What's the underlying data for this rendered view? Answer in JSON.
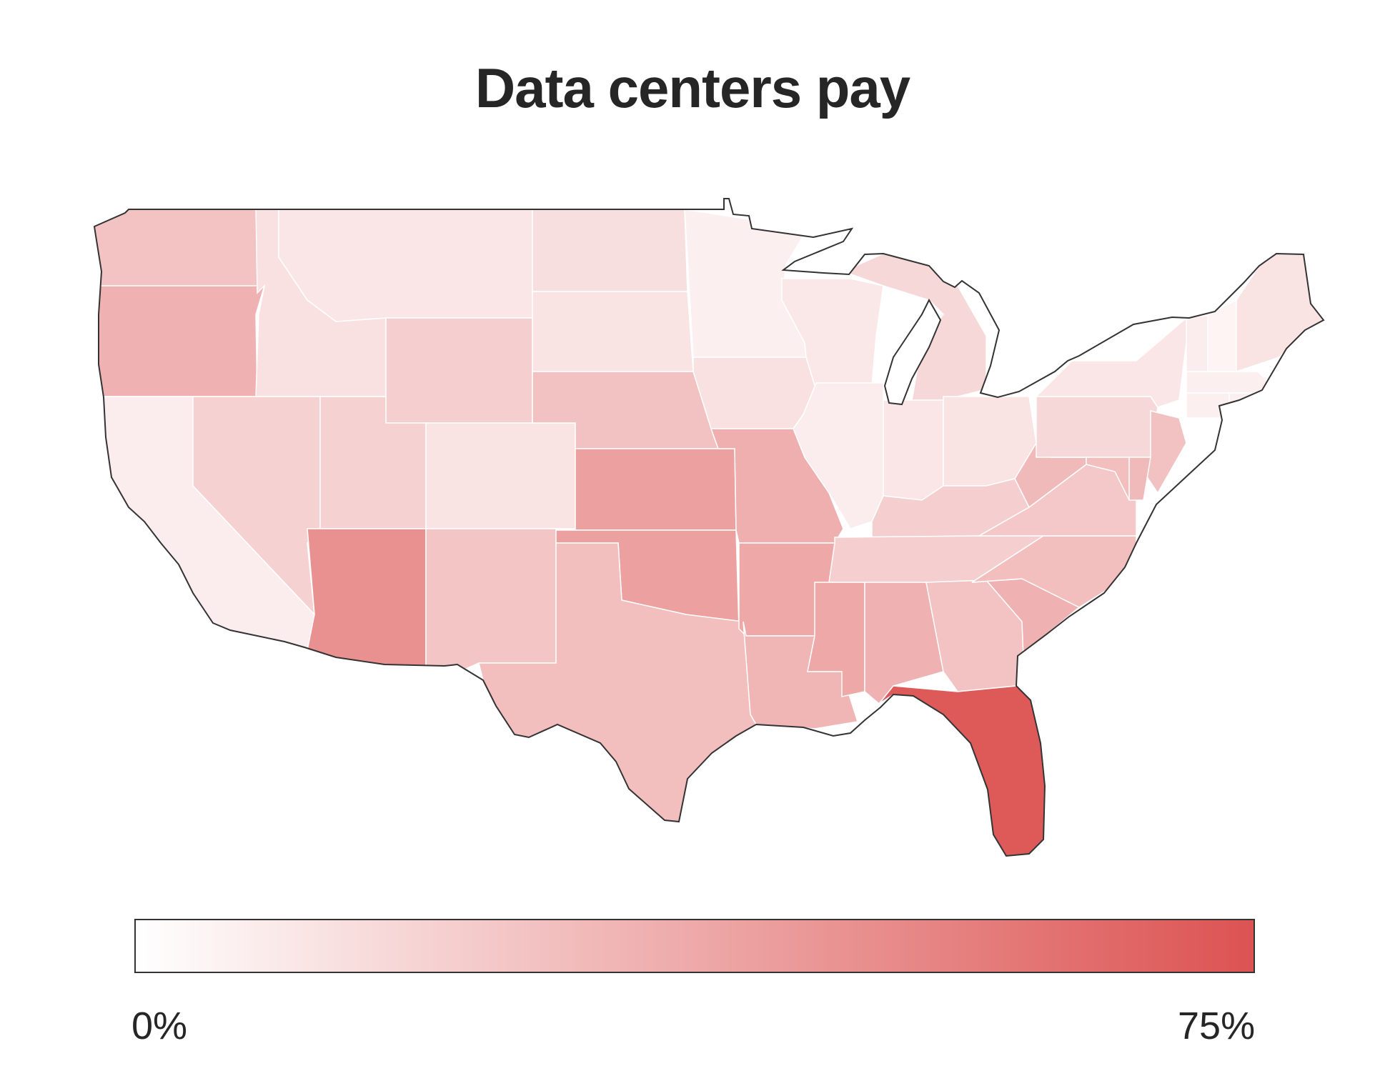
{
  "title": "Data centers pay",
  "colors": {
    "scale_low": "#ffffff",
    "scale_high": "#dc5352",
    "border": "#333333",
    "state_line": "#ffffff"
  },
  "legend": {
    "min_label": "0%",
    "max_label": "75%",
    "min_value": 0,
    "max_value": 75
  },
  "states": [
    {
      "abbr": "WA",
      "value": 26
    },
    {
      "abbr": "OR",
      "value": 34
    },
    {
      "abbr": "CA",
      "value": 8
    },
    {
      "abbr": "ID",
      "value": 13
    },
    {
      "abbr": "NV",
      "value": 20
    },
    {
      "abbr": "MT",
      "value": 11
    },
    {
      "abbr": "WY",
      "value": 21
    },
    {
      "abbr": "UT",
      "value": 20
    },
    {
      "abbr": "AZ",
      "value": 48
    },
    {
      "abbr": "CO",
      "value": 12
    },
    {
      "abbr": "NM",
      "value": 25
    },
    {
      "abbr": "ND",
      "value": 14
    },
    {
      "abbr": "SD",
      "value": 12
    },
    {
      "abbr": "NE",
      "value": 27
    },
    {
      "abbr": "KS",
      "value": 41
    },
    {
      "abbr": "OK",
      "value": 41
    },
    {
      "abbr": "TX",
      "value": 28
    },
    {
      "abbr": "MN",
      "value": 7
    },
    {
      "abbr": "IA",
      "value": 13
    },
    {
      "abbr": "MO",
      "value": 35
    },
    {
      "abbr": "AR",
      "value": 38
    },
    {
      "abbr": "LA",
      "value": 32
    },
    {
      "abbr": "WI",
      "value": 10
    },
    {
      "abbr": "IL",
      "value": 8
    },
    {
      "abbr": "MI",
      "value": 17
    },
    {
      "abbr": "IN",
      "value": 11
    },
    {
      "abbr": "OH",
      "value": 12
    },
    {
      "abbr": "KY",
      "value": 21
    },
    {
      "abbr": "TN",
      "value": 21
    },
    {
      "abbr": "MS",
      "value": 38
    },
    {
      "abbr": "AL",
      "value": 34
    },
    {
      "abbr": "GA",
      "value": 26
    },
    {
      "abbr": "FL",
      "value": 72
    },
    {
      "abbr": "SC",
      "value": 34
    },
    {
      "abbr": "NC",
      "value": 28
    },
    {
      "abbr": "VA",
      "value": 24
    },
    {
      "abbr": "WV",
      "value": 30
    },
    {
      "abbr": "PA",
      "value": 17
    },
    {
      "abbr": "NY",
      "value": 11
    },
    {
      "abbr": "VT",
      "value": 8
    },
    {
      "abbr": "NH",
      "value": 5
    },
    {
      "abbr": "ME",
      "value": 12
    },
    {
      "abbr": "MA",
      "value": 7
    },
    {
      "abbr": "CT",
      "value": 7
    },
    {
      "abbr": "RI",
      "value": 7
    },
    {
      "abbr": "NJ",
      "value": 27
    },
    {
      "abbr": "DE",
      "value": 30
    },
    {
      "abbr": "MD",
      "value": 28
    }
  ]
}
